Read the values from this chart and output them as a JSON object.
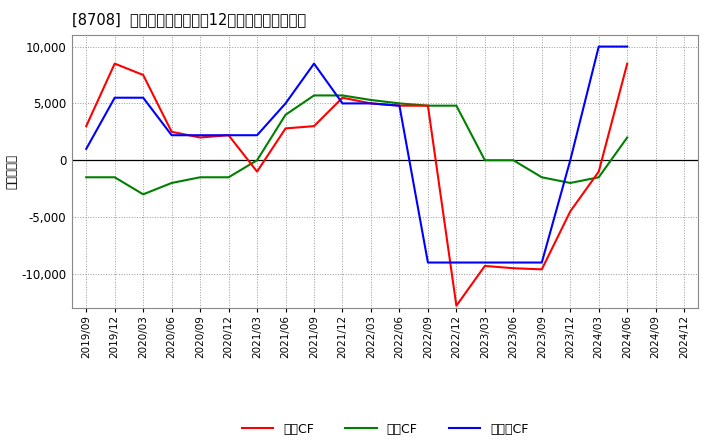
{
  "title": "[8708]  キャッシュフローの12か月移動合計の推移",
  "ylabel": "（百万円）",
  "x_labels": [
    "2019/09",
    "2019/12",
    "2020/03",
    "2020/06",
    "2020/09",
    "2020/12",
    "2021/03",
    "2021/06",
    "2021/09",
    "2021/12",
    "2022/03",
    "2022/06",
    "2022/09",
    "2022/12",
    "2023/03",
    "2023/06",
    "2023/09",
    "2023/12",
    "2024/03",
    "2024/06",
    "2024/09",
    "2024/12"
  ],
  "operating_cf": [
    3000,
    8500,
    7500,
    2500,
    2000,
    2200,
    -1000,
    2800,
    3000,
    5500,
    5000,
    4800,
    4800,
    -12800,
    -9300,
    -9500,
    -9600,
    -4500,
    -1000,
    8500,
    null,
    null
  ],
  "investing_cf": [
    -1500,
    -1500,
    -3000,
    -2000,
    -1500,
    -1500,
    0,
    4000,
    5700,
    5700,
    5300,
    5000,
    4800,
    4800,
    0,
    0,
    -1500,
    -2000,
    -1500,
    2000,
    null,
    null
  ],
  "free_cf": [
    1000,
    5500,
    5500,
    2200,
    2200,
    2200,
    2200,
    5000,
    8500,
    5000,
    5000,
    4800,
    -9000,
    -9000,
    -9000,
    -9000,
    -9000,
    0,
    10000,
    10000,
    null,
    null
  ],
  "ylim": [
    -13000,
    11000
  ],
  "yticks": [
    -10000,
    -5000,
    0,
    5000,
    10000
  ],
  "colors": {
    "operating": "#ff0000",
    "investing": "#008000",
    "free": "#0000ff"
  },
  "background": "#ffffff",
  "grid_color": "#aaaaaa",
  "legend_labels": [
    "営業CF",
    "投資CF",
    "フリーCF"
  ]
}
